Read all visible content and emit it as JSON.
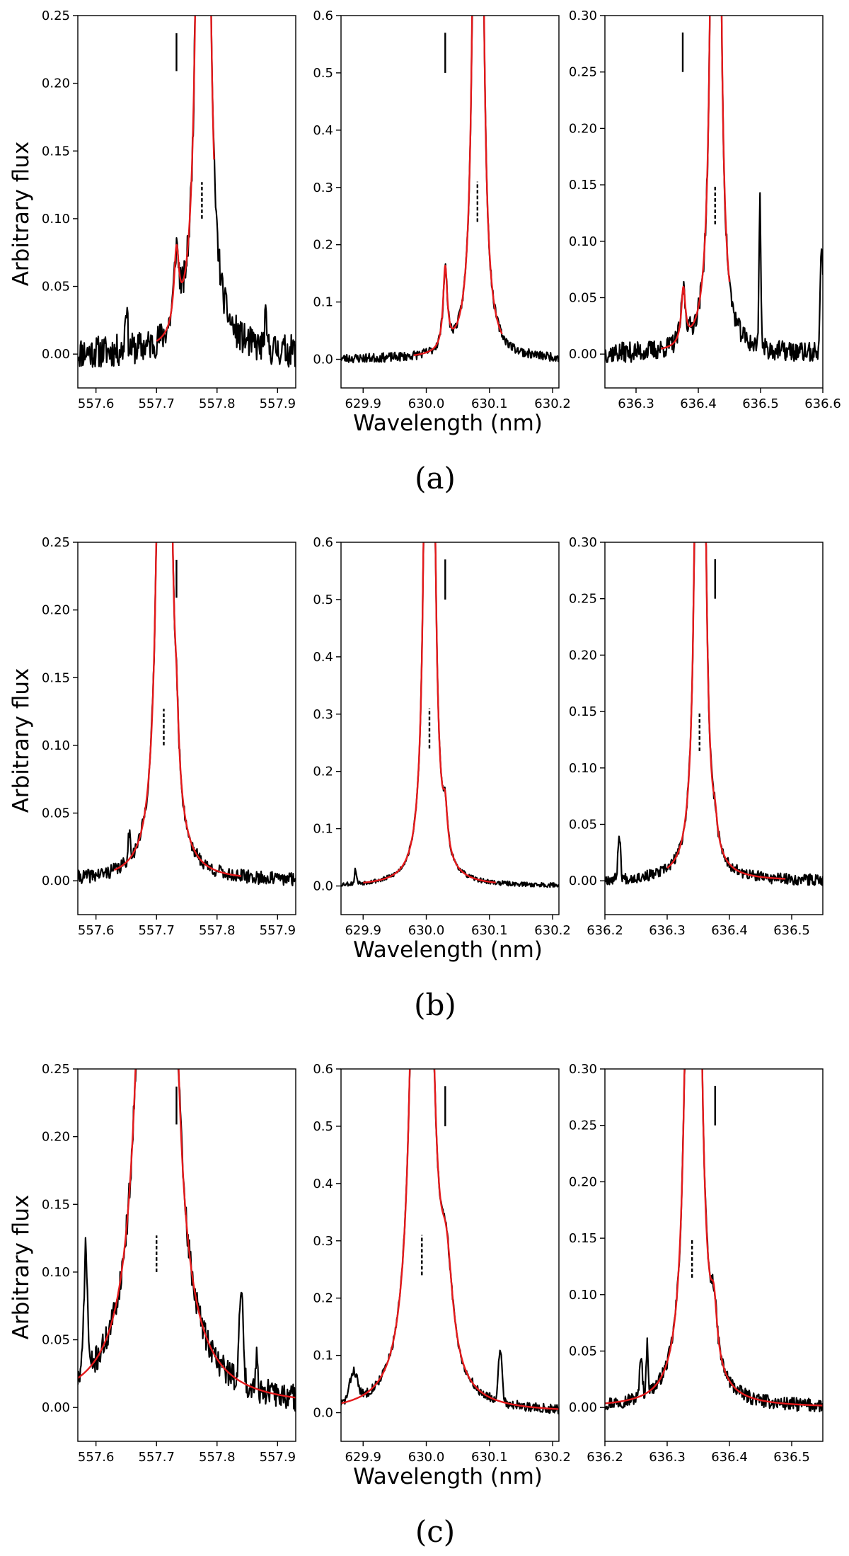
{
  "colors": {
    "observed": "#000000",
    "model": "#e41a1c",
    "axes": "#000000"
  },
  "shared_labels": {
    "ylabel": "Arbitrary flux",
    "xlabel": "Wavelength (nm)"
  },
  "chart_data": [
    {
      "id": "a",
      "caption": "(a)",
      "type": "line",
      "panels": [
        {
          "xlim": [
            557.57,
            557.93
          ],
          "ylim": [
            -0.025,
            0.25
          ],
          "xticks": [
            557.6,
            557.7,
            557.8,
            557.9
          ],
          "xtick_labels": [
            "557.6",
            "557.7",
            "557.8",
            "557.9"
          ],
          "yticks": [
            0,
            0.05,
            0.1,
            0.15,
            0.2,
            0.25
          ],
          "ytick_labels": [
            "0.00",
            "0.05",
            "0.10",
            "0.15",
            "0.20",
            "0.25"
          ],
          "solid_marker": {
            "x": 557.733,
            "y": [
              0.209,
              0.237
            ]
          },
          "dashed_marker": {
            "x": 557.775,
            "y": [
              0.1,
              0.127
            ]
          },
          "lines": [
            {
              "center": 557.777,
              "height": 2.0,
              "width": 0.005
            },
            {
              "center": 557.733,
              "height": 0.055,
              "width": 0.005
            }
          ],
          "model_range": [
            557.7,
            557.795
          ],
          "spikes": [
            {
              "center": 557.65,
              "height": 0.035,
              "width": 0.002
            },
            {
              "center": 557.88,
              "height": 0.02,
              "width": 0.002
            }
          ],
          "noise": 0.012,
          "seed": 11
        },
        {
          "xlim": [
            629.865,
            630.21
          ],
          "ylim": [
            -0.05,
            0.6
          ],
          "xticks": [
            629.9,
            630.0,
            630.1,
            630.2
          ],
          "xtick_labels": [
            "629.9",
            "630.0",
            "630.1",
            "630.2"
          ],
          "yticks": [
            0,
            0.1,
            0.2,
            0.3,
            0.4,
            0.5,
            0.6
          ],
          "ytick_labels": [
            "0.0",
            "0.1",
            "0.2",
            "0.3",
            "0.4",
            "0.5",
            "0.6"
          ],
          "solid_marker": {
            "x": 630.03,
            "y": [
              0.5,
              0.57
            ]
          },
          "dashed_marker": {
            "x": 630.081,
            "y": [
              0.24,
              0.31
            ]
          },
          "lines": [
            {
              "center": 630.082,
              "height": 4.0,
              "width": 0.004
            },
            {
              "center": 630.03,
              "height": 0.14,
              "width": 0.004
            }
          ],
          "model_range": [
            629.98,
            630.12
          ],
          "spikes": [],
          "noise": 0.008,
          "seed": 23
        },
        {
          "xlim": [
            636.25,
            636.6
          ],
          "ylim": [
            -0.03,
            0.3
          ],
          "xticks": [
            636.3,
            636.4,
            636.5,
            636.6
          ],
          "xtick_labels": [
            "636.3",
            "636.4",
            "636.5",
            "636.6"
          ],
          "yticks": [
            0,
            0.05,
            0.1,
            0.15,
            0.2,
            0.25,
            0.3
          ],
          "ytick_labels": [
            "0.00",
            "0.05",
            "0.10",
            "0.15",
            "0.20",
            "0.25",
            "0.30"
          ],
          "solid_marker": {
            "x": 636.375,
            "y": [
              0.25,
              0.285
            ]
          },
          "dashed_marker": {
            "x": 636.427,
            "y": [
              0.115,
              0.15
            ]
          },
          "lines": [
            {
              "center": 636.428,
              "height": 2.0,
              "width": 0.004
            },
            {
              "center": 636.376,
              "height": 0.048,
              "width": 0.004
            }
          ],
          "model_range": [
            636.34,
            636.45
          ],
          "spikes": [
            {
              "center": 636.499,
              "height": 0.13,
              "width": 0.0015
            },
            {
              "center": 636.598,
              "height": 0.1,
              "width": 0.002
            }
          ],
          "noise": 0.009,
          "seed": 37
        }
      ]
    },
    {
      "id": "b",
      "caption": "(b)",
      "type": "line",
      "panels": [
        {
          "xlim": [
            557.57,
            557.93
          ],
          "ylim": [
            -0.025,
            0.25
          ],
          "xticks": [
            557.6,
            557.7,
            557.8,
            557.9
          ],
          "xtick_labels": [
            "557.6",
            "557.7",
            "557.8",
            "557.9"
          ],
          "yticks": [
            0,
            0.05,
            0.1,
            0.15,
            0.2,
            0.25
          ],
          "ytick_labels": [
            "0.00",
            "0.05",
            "0.10",
            "0.15",
            "0.20",
            "0.25"
          ],
          "solid_marker": {
            "x": 557.733,
            "y": [
              0.209,
              0.237
            ]
          },
          "dashed_marker": {
            "x": 557.712,
            "y": [
              0.1,
              0.127
            ]
          },
          "lines": [
            {
              "center": 557.713,
              "height": 2.0,
              "width": 0.005
            },
            {
              "center": 557.733,
              "height": 0.035,
              "width": 0.004
            }
          ],
          "model_range": [
            557.63,
            557.84
          ],
          "wing": {
            "center": 557.713,
            "amplitude": 0.012,
            "scale": 0.02
          },
          "spikes": [
            {
              "center": 557.655,
              "height": 0.02,
              "width": 0.002
            }
          ],
          "noise": 0.005,
          "seed": 41
        },
        {
          "xlim": [
            629.865,
            630.21
          ],
          "ylim": [
            -0.05,
            0.6
          ],
          "xticks": [
            629.9,
            630.0,
            630.1,
            630.2
          ],
          "xtick_labels": [
            "629.9",
            "630.0",
            "630.1",
            "630.2"
          ],
          "yticks": [
            0,
            0.1,
            0.2,
            0.3,
            0.4,
            0.5,
            0.6
          ],
          "ytick_labels": [
            "0.0",
            "0.1",
            "0.2",
            "0.3",
            "0.4",
            "0.5",
            "0.6"
          ],
          "solid_marker": {
            "x": 630.03,
            "y": [
              0.5,
              0.57
            ]
          },
          "dashed_marker": {
            "x": 630.005,
            "y": [
              0.24,
              0.31
            ]
          },
          "lines": [
            {
              "center": 630.005,
              "height": 4.0,
              "width": 0.004
            },
            {
              "center": 630.03,
              "height": 0.065,
              "width": 0.004
            }
          ],
          "model_range": [
            629.9,
            630.11
          ],
          "spikes": [
            {
              "center": 629.888,
              "height": 0.025,
              "width": 0.0015
            }
          ],
          "noise": 0.004,
          "seed": 53
        },
        {
          "xlim": [
            636.2,
            636.55
          ],
          "ylim": [
            -0.03,
            0.3
          ],
          "xticks": [
            636.2,
            636.3,
            636.4,
            636.5
          ],
          "xtick_labels": [
            "636.2",
            "636.3",
            "636.4",
            "636.5"
          ],
          "yticks": [
            0,
            0.05,
            0.1,
            0.15,
            0.2,
            0.25,
            0.3
          ],
          "ytick_labels": [
            "0.00",
            "0.05",
            "0.10",
            "0.15",
            "0.20",
            "0.25",
            "0.30"
          ],
          "solid_marker": {
            "x": 636.377,
            "y": [
              0.25,
              0.285
            ]
          },
          "dashed_marker": {
            "x": 636.352,
            "y": [
              0.115,
              0.15
            ]
          },
          "lines": [
            {
              "center": 636.353,
              "height": 2.0,
              "width": 0.004
            },
            {
              "center": 636.377,
              "height": 0.017,
              "width": 0.004
            }
          ],
          "model_range": [
            636.3,
            636.49
          ],
          "spikes": [
            {
              "center": 636.223,
              "height": 0.04,
              "width": 0.002
            }
          ],
          "noise": 0.005,
          "seed": 67
        }
      ]
    },
    {
      "id": "c",
      "caption": "(c)",
      "type": "line",
      "panels": [
        {
          "xlim": [
            557.57,
            557.93
          ],
          "ylim": [
            -0.025,
            0.25
          ],
          "xticks": [
            557.6,
            557.7,
            557.8,
            557.9
          ],
          "xtick_labels": [
            "557.6",
            "557.7",
            "557.8",
            "557.9"
          ],
          "yticks": [
            0,
            0.05,
            0.1,
            0.15,
            0.2,
            0.25
          ],
          "ytick_labels": [
            "0.00",
            "0.05",
            "0.10",
            "0.15",
            "0.20",
            "0.25"
          ],
          "solid_marker": {
            "x": 557.733,
            "y": [
              0.209,
              0.237
            ]
          },
          "dashed_marker": {
            "x": 557.7,
            "y": [
              0.1,
              0.127
            ]
          },
          "lines": [
            {
              "center": 557.7,
              "height": 2.0,
              "width": 0.013
            },
            {
              "center": 557.733,
              "height": 0.03,
              "width": 0.006
            }
          ],
          "model_range": [
            557.57,
            557.93
          ],
          "wing": {
            "center": 557.7,
            "amplitude": 0.004,
            "scale": 0.12
          },
          "spikes": [
            {
              "center": 557.583,
              "height": 0.09,
              "width": 0.003
            },
            {
              "center": 557.84,
              "height": 0.07,
              "width": 0.003
            },
            {
              "center": 557.865,
              "height": 0.025,
              "width": 0.002
            }
          ],
          "noise": 0.01,
          "seed": 71
        },
        {
          "xlim": [
            629.865,
            630.21
          ],
          "ylim": [
            -0.05,
            0.6
          ],
          "xticks": [
            629.9,
            630.0,
            630.1,
            630.2
          ],
          "xtick_labels": [
            "629.9",
            "630.0",
            "630.1",
            "630.2"
          ],
          "yticks": [
            0,
            0.1,
            0.2,
            0.3,
            0.4,
            0.5,
            0.6
          ],
          "ytick_labels": [
            "0.0",
            "0.1",
            "0.2",
            "0.3",
            "0.4",
            "0.5",
            "0.6"
          ],
          "solid_marker": {
            "x": 630.03,
            "y": [
              0.5,
              0.57
            ]
          },
          "dashed_marker": {
            "x": 629.993,
            "y": [
              0.24,
              0.31
            ]
          },
          "lines": [
            {
              "center": 629.993,
              "height": 4.0,
              "width": 0.008
            },
            {
              "center": 630.032,
              "height": 0.16,
              "width": 0.012
            }
          ],
          "model_range": [
            629.865,
            630.21
          ],
          "spikes": [
            {
              "center": 629.885,
              "height": 0.05,
              "width": 0.006
            },
            {
              "center": 630.117,
              "height": 0.09,
              "width": 0.003
            }
          ],
          "noise": 0.008,
          "seed": 83
        },
        {
          "xlim": [
            636.2,
            636.55
          ],
          "ylim": [
            -0.03,
            0.3
          ],
          "xticks": [
            636.2,
            636.3,
            636.4,
            636.5
          ],
          "xtick_labels": [
            "636.2",
            "636.3",
            "636.4",
            "636.5"
          ],
          "yticks": [
            0,
            0.05,
            0.1,
            0.15,
            0.2,
            0.25,
            0.3
          ],
          "ytick_labels": [
            "0.00",
            "0.05",
            "0.10",
            "0.15",
            "0.20",
            "0.25",
            "0.30"
          ],
          "solid_marker": {
            "x": 636.377,
            "y": [
              0.25,
              0.285
            ]
          },
          "dashed_marker": {
            "x": 636.34,
            "y": [
              0.115,
              0.15
            ]
          },
          "lines": [
            {
              "center": 636.342,
              "height": 2.0,
              "width": 0.006
            },
            {
              "center": 636.375,
              "height": 0.045,
              "width": 0.006
            }
          ],
          "model_range": [
            636.2,
            636.55
          ],
          "spikes": [
            {
              "center": 636.258,
              "height": 0.038,
              "width": 0.002
            },
            {
              "center": 636.268,
              "height": 0.045,
              "width": 0.0015
            }
          ],
          "noise": 0.006,
          "seed": 97
        }
      ]
    }
  ]
}
